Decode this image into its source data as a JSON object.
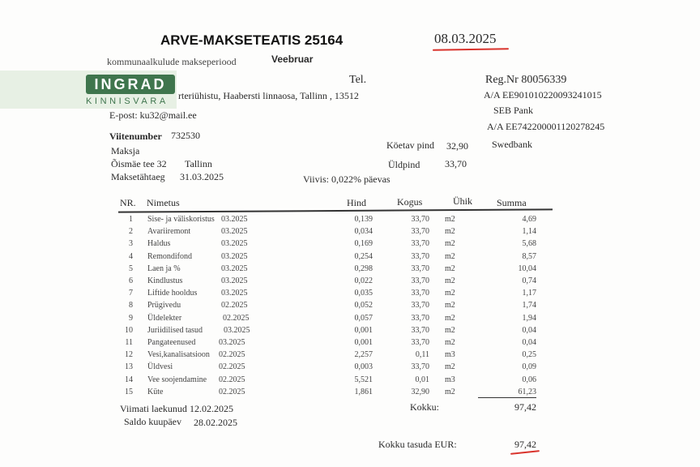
{
  "header": {
    "title": "ARVE-MAKSETEATIS  25164",
    "date": "08.03.2025",
    "period_label": "kommunaalkulude makseperiood",
    "period_value": "Veebruar",
    "tel_label": "Tel.",
    "address": "rteriühistu, Haabersti linnaosa, Tallinn , 13512",
    "email": "E-post: ku32@mail.ee"
  },
  "logo": {
    "name": "INGRAD",
    "sub": "KINNISVARA",
    "color": "#2f6a3f"
  },
  "bank": {
    "reg": "Reg.Nr  80056339",
    "account1": "A/A EE901010220093241015",
    "bank1": "SEB Pank",
    "account2": "A/A EE742200001120278245",
    "bank2": "Swedbank"
  },
  "payer": {
    "ref_label": "Viitenumber",
    "ref_value": "732530",
    "payer_label": "Maksja",
    "street": "Õismäe tee 32",
    "city": "Tallinn",
    "due_label": "Maksetähtaeg",
    "due_value": "31.03.2025",
    "heated_label": "Köetav pind",
    "heated_value": "32,90",
    "total_area_label": "Üldpind",
    "total_area_value": "33,70",
    "penalty": "Viivis:  0,022% päevas"
  },
  "table": {
    "headers": {
      "nr": "NR.",
      "name": "Nimetus",
      "price": "Hind",
      "qty": "Kogus",
      "unit": "Ühik",
      "sum": "Summa"
    },
    "rows": [
      {
        "nr": "1",
        "name": "Sise- ja väliskoristus",
        "period": "03.2025",
        "price": "0,139",
        "qty": "33,70",
        "unit": "m2",
        "sum": "4,69"
      },
      {
        "nr": "2",
        "name": "Avariiremont",
        "period": "03.2025",
        "price": "0,034",
        "qty": "33,70",
        "unit": "m2",
        "sum": "1,14"
      },
      {
        "nr": "3",
        "name": "Haldus",
        "period": "03.2025",
        "price": "0,169",
        "qty": "33,70",
        "unit": "m2",
        "sum": "5,68"
      },
      {
        "nr": "4",
        "name": "Remondifond",
        "period": "03.2025",
        "price": "0,254",
        "qty": "33,70",
        "unit": "m2",
        "sum": "8,57"
      },
      {
        "nr": "5",
        "name": "Laen ja %",
        "period": "03.2025",
        "price": "0,298",
        "qty": "33,70",
        "unit": "m2",
        "sum": "10,04"
      },
      {
        "nr": "6",
        "name": "Kindlustus",
        "period": "03.2025",
        "price": "0,022",
        "qty": "33,70",
        "unit": "m2",
        "sum": "0,74"
      },
      {
        "nr": "7",
        "name": "Liftide hooldus",
        "period": "03.2025",
        "price": "0,035",
        "qty": "33,70",
        "unit": "m2",
        "sum": "1,17"
      },
      {
        "nr": "8",
        "name": "Prügivedu",
        "period": "02.2025",
        "price": "0,052",
        "qty": "33,70",
        "unit": "m2",
        "sum": "1,74"
      },
      {
        "nr": "9",
        "name": "Üldelekter",
        "period": "02.2025",
        "price": "0,057",
        "qty": "33,70",
        "unit": "m2",
        "sum": "1,94"
      },
      {
        "nr": "10",
        "name": "Juriidilised tasud",
        "period": "03.2025",
        "price": "0,001",
        "qty": "33,70",
        "unit": "m2",
        "sum": "0,04"
      },
      {
        "nr": "11",
        "name": "Pangateenused",
        "period": "03.2025",
        "price": "0,001",
        "qty": "33,70",
        "unit": "m2",
        "sum": "0,04"
      },
      {
        "nr": "12",
        "name": "Vesi,kanalisatsioon",
        "period": "02.2025",
        "price": "2,257",
        "qty": "0,11",
        "unit": "m3",
        "sum": "0,25"
      },
      {
        "nr": "13",
        "name": "Üldvesi",
        "period": "02.2025",
        "price": "0,003",
        "qty": "33,70",
        "unit": "m2",
        "sum": "0,09"
      },
      {
        "nr": "14",
        "name": "Vee soojendamine",
        "period": "02.2025",
        "price": "5,521",
        "qty": "0,01",
        "unit": "m3",
        "sum": "0,06"
      },
      {
        "nr": "15",
        "name": "Küte",
        "period": "02.2025",
        "price": "1,861",
        "qty": "32,90",
        "unit": "m2",
        "sum": "61,23"
      }
    ]
  },
  "footer": {
    "last_paid_label": "Viimati laekunud",
    "last_paid_value": "12.02.2025",
    "balance_label": "Saldo kuupäev",
    "balance_value": "28.02.2025",
    "total_label": "Kokku:",
    "total_value": "97,42",
    "due_total_label": "Kokku  tasuda EUR:",
    "due_total_value": "97,42"
  },
  "colors": {
    "underline": "#d9332c"
  }
}
